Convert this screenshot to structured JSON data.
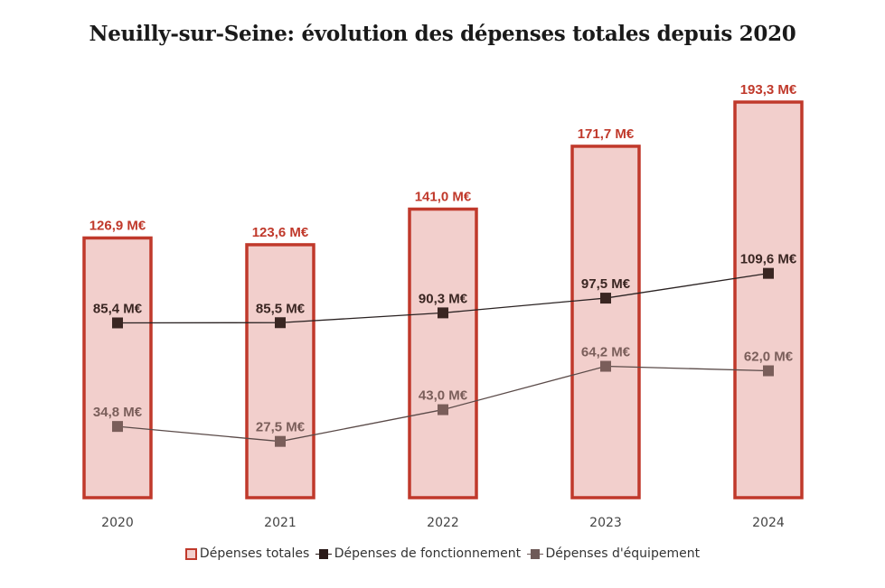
{
  "chart_data": {
    "type": "bar",
    "title": "Neuilly-sur-Seine: évolution des dépenses totales depuis 2020",
    "xlabel": "",
    "ylabel": "",
    "ylim": [
      0,
      193.3
    ],
    "grid": false,
    "legend_position": "bottom",
    "categories": [
      "2020",
      "2021",
      "2022",
      "2023",
      "2024"
    ],
    "series": [
      {
        "name": "Dépenses totales",
        "type": "bar",
        "values": [
          126.9,
          123.6,
          141.0,
          171.7,
          193.3
        ],
        "labels": [
          "126,9 M€",
          "123,6 M€",
          "141,0 M€",
          "171,7 M€",
          "193,3 M€"
        ],
        "color": "#c0392b",
        "fill": "#f2cfcc"
      },
      {
        "name": "Dépenses de fonctionnement",
        "type": "line",
        "values": [
          85.4,
          85.5,
          90.3,
          97.5,
          109.6
        ],
        "labels": [
          "85,4 M€",
          "85,5 M€",
          "90,3 M€",
          "97,5 M€",
          "109,6 M€"
        ],
        "color": "#3a2622"
      },
      {
        "name": "Dépenses d'équipement",
        "type": "line",
        "values": [
          34.8,
          27.5,
          43.0,
          64.2,
          62.0
        ],
        "labels": [
          "34,8 M€",
          "27,5 M€",
          "43,0 M€",
          "64,2 M€",
          "62,0 M€"
        ],
        "color": "#7a5e5a"
      }
    ]
  }
}
